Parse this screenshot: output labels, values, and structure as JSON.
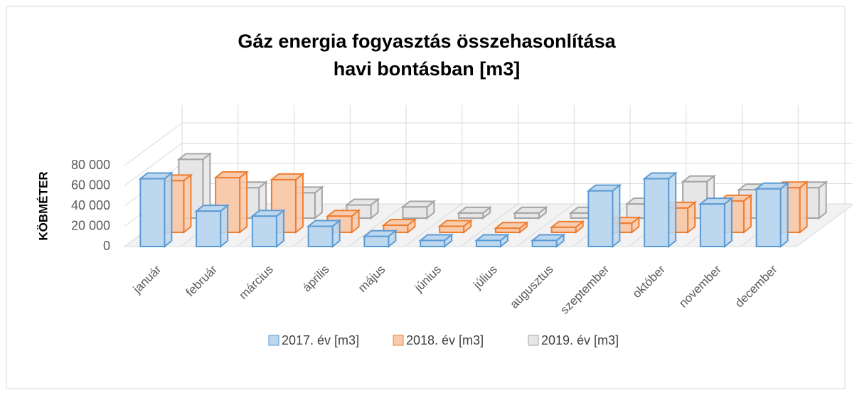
{
  "chart_data": {
    "type": "bar3d",
    "title": [
      "Gáz energia fogyasztás összehasonlítása",
      "havi bontásban [m3]"
    ],
    "y_label": "KÖBMÉTER",
    "categories": [
      "január",
      "február",
      "március",
      "április",
      "május",
      "június",
      "július",
      "augusztus",
      "szeptember",
      "október",
      "november",
      "december"
    ],
    "series": [
      {
        "name": "2017. év [m3]",
        "color": "#bdd7ee",
        "edge": "#5b9bd5",
        "values": [
          67000,
          35000,
          30000,
          20000,
          10000,
          6000,
          6000,
          6000,
          55000,
          67000,
          42000,
          57000
        ]
      },
      {
        "name": "2018. év [m3]",
        "color": "#f8cbad",
        "edge": "#ed7d31",
        "values": [
          51000,
          54000,
          52000,
          16000,
          7000,
          6000,
          4000,
          5000,
          9000,
          24000,
          31000,
          44000
        ]
      },
      {
        "name": "2019. év [m3]",
        "color": "#e7e6e6",
        "edge": "#a5a5a5",
        "values": [
          58000,
          30000,
          25000,
          13000,
          11000,
          5000,
          5000,
          5000,
          14000,
          36000,
          28000,
          30000
        ]
      }
    ],
    "ylim": [
      0,
      80000
    ],
    "yticks": [
      0,
      {
        "value": 20000,
        "label": "20 000"
      },
      {
        "value": 40000,
        "label": "40 000"
      },
      {
        "value": 60000,
        "label": "60 000"
      },
      {
        "value": 80000,
        "label": "80 000"
      }
    ],
    "grid": true,
    "legend": "bottom"
  }
}
